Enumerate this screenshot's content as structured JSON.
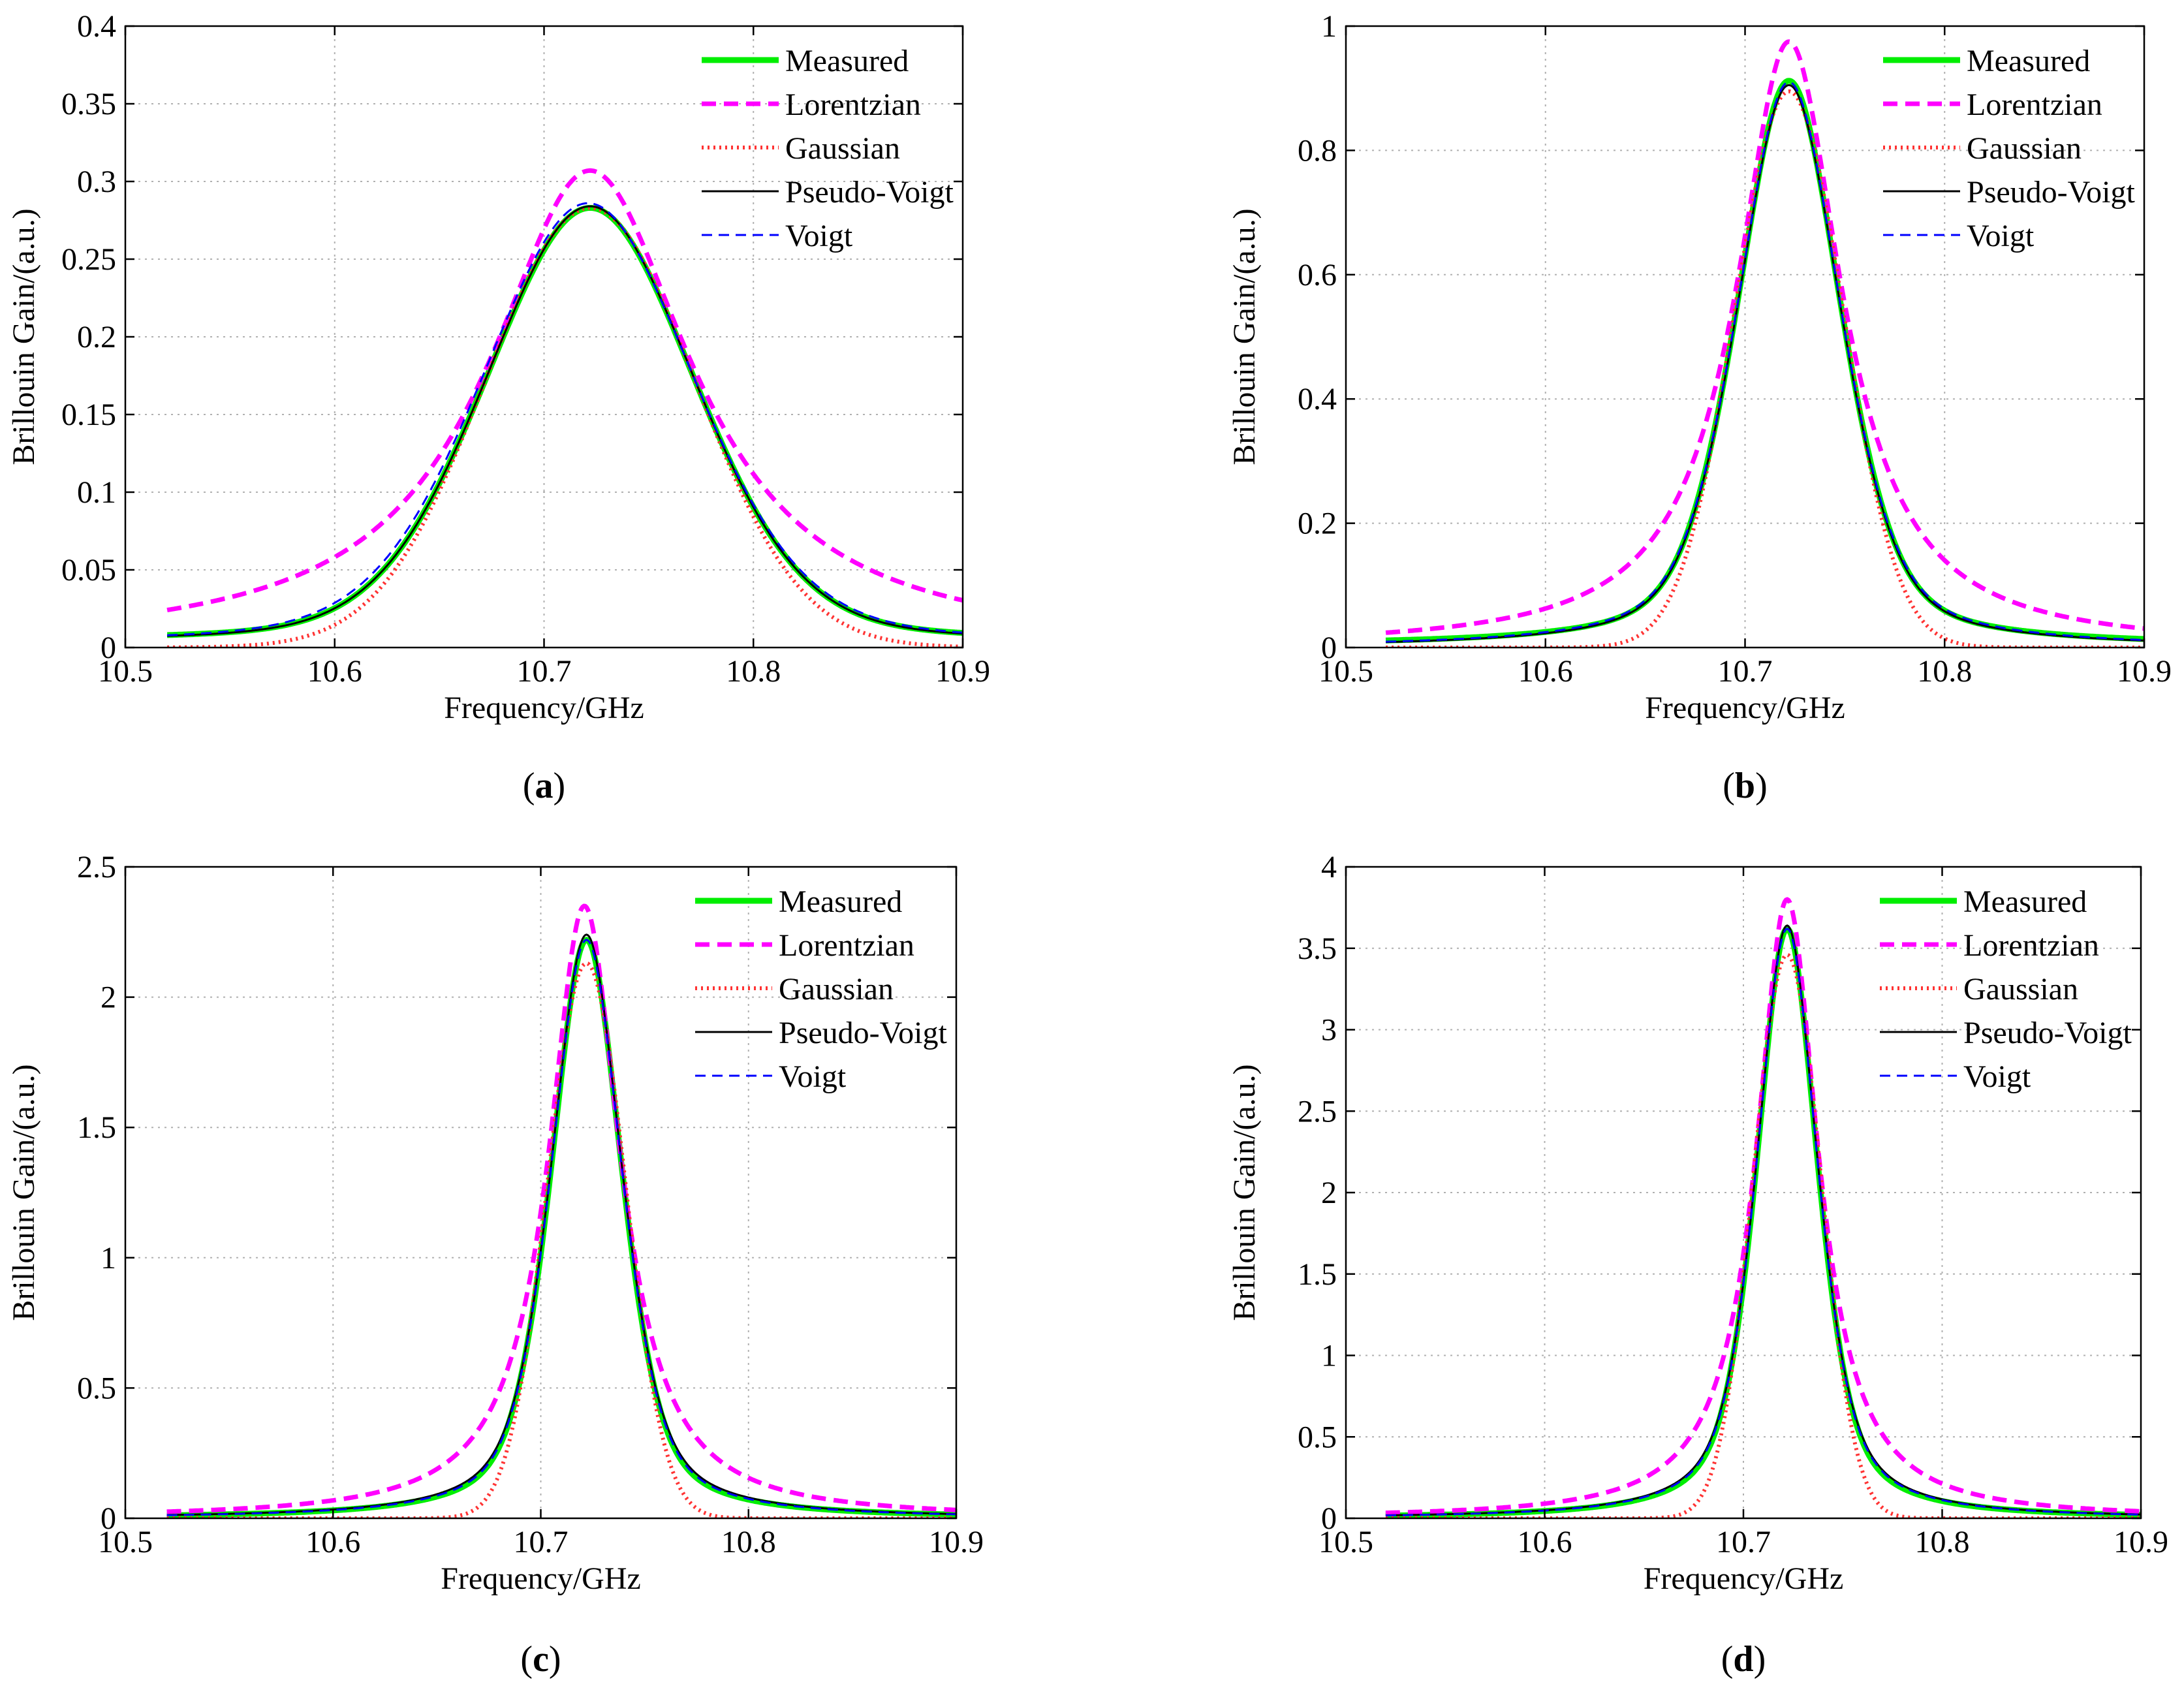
{
  "figure": {
    "legend_entries": [
      "Measured",
      "Lorentzian",
      "Gaussian",
      "Pseudo-Voigt",
      "Voigt"
    ],
    "colors": {
      "measured": "#00ee00",
      "lorentzian": "#ff00ff",
      "gaussian": "#ff3333",
      "pseudo_voigt": "#000000",
      "voigt": "#0000ff",
      "grid": "#b0b0b0"
    }
  },
  "chart_data": [
    {
      "type": "line",
      "panel_label": "a",
      "xlabel": "Frequency/GHz",
      "ylabel": "Brillouin Gain/(a.u.)",
      "xlim": [
        10.5,
        10.9
      ],
      "ylim": [
        0,
        0.4
      ],
      "xticks": [
        10.5,
        10.6,
        10.7,
        10.8,
        10.9
      ],
      "xtick_labels": [
        "10.5",
        "10.6",
        "10.7",
        "10.8",
        "10.9"
      ],
      "yticks": [
        0,
        0.05,
        0.1,
        0.15,
        0.2,
        0.25,
        0.3,
        0.35,
        0.4
      ],
      "ytick_labels": [
        "0",
        "0.05",
        "0.1",
        "0.15",
        "0.2",
        "0.25",
        "0.3",
        "0.35",
        "0.4"
      ],
      "grid": true,
      "legend_position": "top-right",
      "x_range": [
        10.52,
        10.9
      ],
      "series": [
        {
          "name": "Measured",
          "model": "pseudo-voigt",
          "peak": 0.283,
          "center": 10.722,
          "fwhm": 0.118,
          "eta": 0.18,
          "baseline": 0.004
        },
        {
          "name": "Lorentzian",
          "model": "lorentzian",
          "peak": 0.307,
          "center": 10.722,
          "fwhm": 0.118,
          "eta": 1,
          "baseline": 0
        },
        {
          "name": "Gaussian",
          "model": "gaussian",
          "peak": 0.283,
          "center": 10.722,
          "fwhm": 0.118,
          "eta": 0,
          "baseline": 0
        },
        {
          "name": "Pseudo-Voigt",
          "model": "pseudo-voigt",
          "peak": 0.284,
          "center": 10.722,
          "fwhm": 0.118,
          "eta": 0.2,
          "baseline": 0.003
        },
        {
          "name": "Voigt",
          "model": "pseudo-voigt",
          "peak": 0.286,
          "center": 10.721,
          "fwhm": 0.12,
          "eta": 0.25,
          "baseline": 0.002
        }
      ]
    },
    {
      "type": "line",
      "panel_label": "b",
      "xlabel": "Frequency/GHz",
      "ylabel": "Brillouin Gain/(a.u.)",
      "xlim": [
        10.5,
        10.9
      ],
      "ylim": [
        0,
        1
      ],
      "xticks": [
        10.5,
        10.6,
        10.7,
        10.8,
        10.9
      ],
      "xtick_labels": [
        "10.5",
        "10.6",
        "10.7",
        "10.8",
        "10.9"
      ],
      "yticks": [
        0,
        0.2,
        0.4,
        0.6,
        0.8,
        1
      ],
      "ytick_labels": [
        "0",
        "0.2",
        "0.4",
        "0.6",
        "0.8",
        "1"
      ],
      "grid": true,
      "legend_position": "top-right",
      "x_range": [
        10.52,
        10.9
      ],
      "series": [
        {
          "name": "Measured",
          "model": "pseudo-voigt",
          "peak": 0.912,
          "center": 10.722,
          "fwhm": 0.062,
          "eta": 0.4,
          "baseline": 0.003
        },
        {
          "name": "Lorentzian",
          "model": "lorentzian",
          "peak": 0.975,
          "center": 10.722,
          "fwhm": 0.064,
          "eta": 1,
          "baseline": 0
        },
        {
          "name": "Gaussian",
          "model": "gaussian",
          "peak": 0.895,
          "center": 10.722,
          "fwhm": 0.064,
          "eta": 0,
          "baseline": 0
        },
        {
          "name": "Pseudo-Voigt",
          "model": "pseudo-voigt",
          "peak": 0.905,
          "center": 10.722,
          "fwhm": 0.062,
          "eta": 0.42,
          "baseline": 0
        },
        {
          "name": "Voigt",
          "model": "pseudo-voigt",
          "peak": 0.91,
          "center": 10.722,
          "fwhm": 0.062,
          "eta": 0.45,
          "baseline": 0
        }
      ]
    },
    {
      "type": "line",
      "panel_label": "c",
      "xlabel": "Frequency/GHz",
      "ylabel": "Brillouin Gain/(a.u.)",
      "xlim": [
        10.5,
        10.9
      ],
      "ylim": [
        0,
        2.5
      ],
      "xticks": [
        10.5,
        10.6,
        10.7,
        10.8,
        10.9
      ],
      "xtick_labels": [
        "10.5",
        "10.6",
        "10.7",
        "10.8",
        "10.9"
      ],
      "yticks": [
        0,
        0.5,
        1,
        1.5,
        2,
        2.5
      ],
      "ytick_labels": [
        "0",
        "0.5",
        "1",
        "1.5",
        "2",
        "2.5"
      ],
      "grid": true,
      "legend_position": "top-right",
      "x_range": [
        10.52,
        10.9
      ],
      "series": [
        {
          "name": "Measured",
          "model": "pseudo-voigt",
          "peak": 2.22,
          "center": 10.722,
          "fwhm": 0.041,
          "eta": 0.5,
          "baseline": 0
        },
        {
          "name": "Lorentzian",
          "model": "lorentzian",
          "peak": 2.35,
          "center": 10.721,
          "fwhm": 0.042,
          "eta": 1,
          "baseline": 0
        },
        {
          "name": "Gaussian",
          "model": "gaussian",
          "peak": 2.13,
          "center": 10.722,
          "fwhm": 0.044,
          "eta": 0,
          "baseline": 0
        },
        {
          "name": "Pseudo-Voigt",
          "model": "pseudo-voigt",
          "peak": 2.24,
          "center": 10.722,
          "fwhm": 0.041,
          "eta": 0.55,
          "baseline": 0
        },
        {
          "name": "Voigt",
          "model": "pseudo-voigt",
          "peak": 2.22,
          "center": 10.722,
          "fwhm": 0.041,
          "eta": 0.52,
          "baseline": 0
        }
      ]
    },
    {
      "type": "line",
      "panel_label": "d",
      "xlabel": "Frequency/GHz",
      "ylabel": "Brillouin Gain/(a.u.)",
      "xlim": [
        10.5,
        10.9
      ],
      "ylim": [
        0,
        4
      ],
      "xticks": [
        10.5,
        10.6,
        10.7,
        10.8,
        10.9
      ],
      "xtick_labels": [
        "10.5",
        "10.6",
        "10.7",
        "10.8",
        "10.9"
      ],
      "yticks": [
        0,
        0.5,
        1,
        1.5,
        2,
        2.5,
        3,
        3.5,
        4
      ],
      "ytick_labels": [
        "0",
        "0.5",
        "1",
        "1.5",
        "2",
        "2.5",
        "3",
        "3.5",
        "4"
      ],
      "grid": true,
      "legend_position": "top-right",
      "x_range": [
        10.52,
        10.9
      ],
      "series": [
        {
          "name": "Measured",
          "model": "pseudo-voigt",
          "peak": 3.62,
          "center": 10.722,
          "fwhm": 0.037,
          "eta": 0.55,
          "baseline": 0
        },
        {
          "name": "Lorentzian",
          "model": "lorentzian",
          "peak": 3.8,
          "center": 10.722,
          "fwhm": 0.038,
          "eta": 1,
          "baseline": 0
        },
        {
          "name": "Gaussian",
          "model": "gaussian",
          "peak": 3.46,
          "center": 10.722,
          "fwhm": 0.04,
          "eta": 0,
          "baseline": 0
        },
        {
          "name": "Pseudo-Voigt",
          "model": "pseudo-voigt",
          "peak": 3.64,
          "center": 10.722,
          "fwhm": 0.037,
          "eta": 0.6,
          "baseline": 0
        },
        {
          "name": "Voigt",
          "model": "pseudo-voigt",
          "peak": 3.62,
          "center": 10.722,
          "fwhm": 0.037,
          "eta": 0.58,
          "baseline": 0
        }
      ]
    }
  ]
}
